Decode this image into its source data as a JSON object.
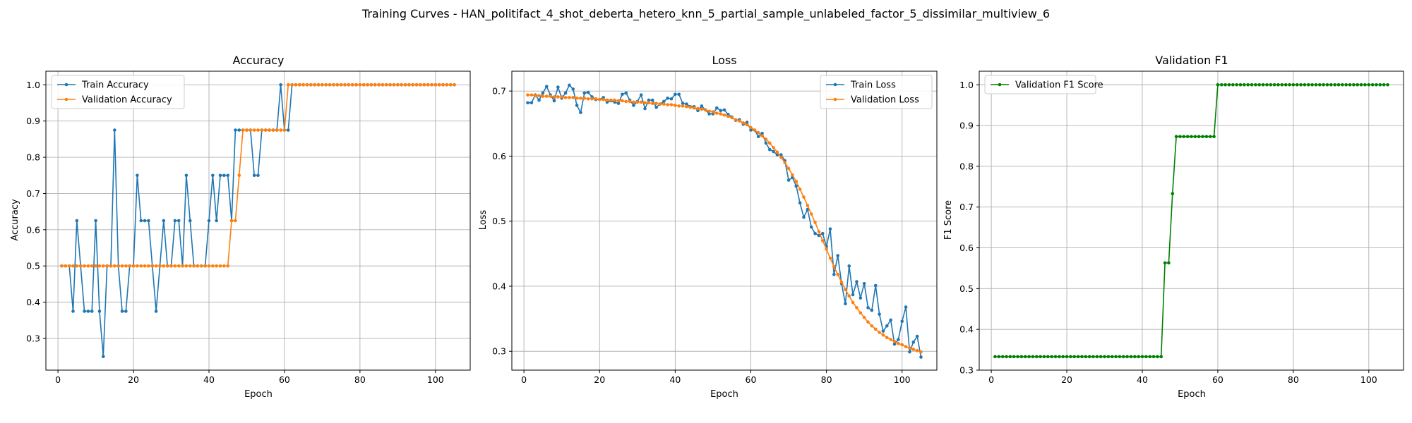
{
  "figure": {
    "suptitle": "Training Curves - HAN_politifact_4_shot_deberta_hetero_knn_5_partial_sample_unlabeled_factor_5_dissimilar_multiview_6"
  },
  "chart_data": [
    {
      "type": "line",
      "title": "Accuracy",
      "xlabel": "Epoch",
      "ylabel": "Accuracy",
      "xlim": [
        -3.2,
        109.2
      ],
      "ylim": [
        0.2125,
        1.0375
      ],
      "xticks": [
        0,
        20,
        40,
        60,
        80,
        100
      ],
      "yticks": [
        0.3,
        0.4,
        0.5,
        0.6,
        0.7,
        0.8,
        0.9,
        1.0
      ],
      "ytick_labels": [
        "0.3",
        "0.4",
        "0.5",
        "0.6",
        "0.7",
        "0.8",
        "0.9",
        "1.0"
      ],
      "grid": true,
      "legend_loc": "upper left",
      "x": "epochs",
      "series": [
        {
          "name": "Train Accuracy",
          "color": "#1f77b4",
          "values": [
            0.5,
            0.5,
            0.5,
            0.375,
            0.625,
            0.5,
            0.375,
            0.375,
            0.375,
            0.625,
            0.375,
            0.25,
            0.5,
            0.5,
            0.875,
            0.5,
            0.375,
            0.375,
            0.5,
            0.5,
            0.75,
            0.625,
            0.625,
            0.625,
            0.5,
            0.375,
            0.5,
            0.625,
            0.5,
            0.5,
            0.625,
            0.625,
            0.5,
            0.75,
            0.625,
            0.5,
            0.5,
            0.5,
            0.5,
            0.625,
            0.75,
            0.625,
            0.75,
            0.75,
            0.75,
            0.625,
            0.875,
            0.875,
            0.875,
            0.875,
            0.875,
            0.75,
            0.75,
            0.875,
            0.875,
            0.875,
            0.875,
            0.875,
            1.0,
            0.875,
            0.875,
            1.0,
            1.0,
            1.0,
            1.0,
            1.0,
            1.0,
            1.0,
            1.0,
            1.0,
            1.0,
            1.0,
            1.0,
            1.0,
            1.0,
            1.0,
            1.0,
            1.0,
            1.0,
            1.0,
            1.0,
            1.0,
            1.0,
            1.0,
            1.0,
            1.0,
            1.0,
            1.0,
            1.0,
            1.0,
            1.0,
            1.0,
            1.0,
            1.0,
            1.0,
            1.0,
            1.0,
            1.0,
            1.0,
            1.0,
            1.0,
            1.0,
            1.0,
            1.0,
            1.0
          ]
        },
        {
          "name": "Validation Accuracy",
          "color": "#ff7f0e",
          "values": [
            0.5,
            0.5,
            0.5,
            0.5,
            0.5,
            0.5,
            0.5,
            0.5,
            0.5,
            0.5,
            0.5,
            0.5,
            0.5,
            0.5,
            0.5,
            0.5,
            0.5,
            0.5,
            0.5,
            0.5,
            0.5,
            0.5,
            0.5,
            0.5,
            0.5,
            0.5,
            0.5,
            0.5,
            0.5,
            0.5,
            0.5,
            0.5,
            0.5,
            0.5,
            0.5,
            0.5,
            0.5,
            0.5,
            0.5,
            0.5,
            0.5,
            0.5,
            0.5,
            0.5,
            0.5,
            0.625,
            0.625,
            0.75,
            0.875,
            0.875,
            0.875,
            0.875,
            0.875,
            0.875,
            0.875,
            0.875,
            0.875,
            0.875,
            0.875,
            0.875,
            1.0,
            1.0,
            1.0,
            1.0,
            1.0,
            1.0,
            1.0,
            1.0,
            1.0,
            1.0,
            1.0,
            1.0,
            1.0,
            1.0,
            1.0,
            1.0,
            1.0,
            1.0,
            1.0,
            1.0,
            1.0,
            1.0,
            1.0,
            1.0,
            1.0,
            1.0,
            1.0,
            1.0,
            1.0,
            1.0,
            1.0,
            1.0,
            1.0,
            1.0,
            1.0,
            1.0,
            1.0,
            1.0,
            1.0,
            1.0,
            1.0,
            1.0,
            1.0,
            1.0,
            1.0
          ]
        }
      ]
    },
    {
      "type": "line",
      "title": "Loss",
      "xlabel": "Epoch",
      "ylabel": "Loss",
      "xlim": [
        -3.2,
        109.2
      ],
      "ylim": [
        0.271,
        0.7305
      ],
      "xticks": [
        0,
        20,
        40,
        60,
        80,
        100
      ],
      "yticks": [
        0.3,
        0.4,
        0.5,
        0.6,
        0.7
      ],
      "ytick_labels": [
        "0.3",
        "0.4",
        "0.5",
        "0.6",
        "0.7"
      ],
      "grid": true,
      "legend_loc": "upper right",
      "x": "epochs",
      "series": [
        {
          "name": "Train Loss",
          "color": "#1f77b4",
          "values": [
            0.682,
            0.682,
            0.694,
            0.686,
            0.697,
            0.707,
            0.694,
            0.685,
            0.706,
            0.689,
            0.697,
            0.709,
            0.703,
            0.678,
            0.667,
            0.697,
            0.698,
            0.691,
            0.687,
            0.687,
            0.69,
            0.683,
            0.685,
            0.683,
            0.681,
            0.695,
            0.697,
            0.686,
            0.678,
            0.684,
            0.694,
            0.673,
            0.686,
            0.686,
            0.675,
            0.68,
            0.684,
            0.689,
            0.688,
            0.695,
            0.695,
            0.681,
            0.68,
            0.676,
            0.676,
            0.67,
            0.677,
            0.671,
            0.665,
            0.665,
            0.674,
            0.67,
            0.671,
            0.664,
            0.66,
            0.655,
            0.656,
            0.649,
            0.652,
            0.64,
            0.64,
            0.63,
            0.635,
            0.62,
            0.61,
            0.607,
            0.602,
            0.602,
            0.593,
            0.563,
            0.567,
            0.554,
            0.528,
            0.506,
            0.518,
            0.491,
            0.481,
            0.478,
            0.481,
            0.461,
            0.488,
            0.418,
            0.447,
            0.404,
            0.373,
            0.431,
            0.387,
            0.407,
            0.382,
            0.404,
            0.367,
            0.363,
            0.401,
            0.357,
            0.331,
            0.339,
            0.348,
            0.311,
            0.318,
            0.346,
            0.368,
            0.299,
            0.314,
            0.323,
            0.291
          ]
        },
        {
          "name": "Validation Loss",
          "color": "#ff7f0e",
          "values": [
            0.694,
            0.694,
            0.693,
            0.693,
            0.692,
            0.692,
            0.692,
            0.691,
            0.691,
            0.691,
            0.69,
            0.69,
            0.69,
            0.689,
            0.689,
            0.689,
            0.688,
            0.688,
            0.688,
            0.687,
            0.687,
            0.686,
            0.686,
            0.686,
            0.685,
            0.685,
            0.684,
            0.684,
            0.683,
            0.683,
            0.683,
            0.682,
            0.682,
            0.681,
            0.681,
            0.68,
            0.68,
            0.679,
            0.679,
            0.678,
            0.677,
            0.677,
            0.676,
            0.675,
            0.674,
            0.673,
            0.672,
            0.671,
            0.669,
            0.668,
            0.666,
            0.665,
            0.663,
            0.661,
            0.659,
            0.656,
            0.654,
            0.651,
            0.648,
            0.644,
            0.64,
            0.636,
            0.631,
            0.626,
            0.62,
            0.613,
            0.606,
            0.598,
            0.59,
            0.581,
            0.571,
            0.561,
            0.549,
            0.537,
            0.524,
            0.511,
            0.498,
            0.484,
            0.47,
            0.457,
            0.443,
            0.43,
            0.418,
            0.406,
            0.395,
            0.385,
            0.375,
            0.367,
            0.359,
            0.352,
            0.345,
            0.339,
            0.334,
            0.329,
            0.325,
            0.321,
            0.318,
            0.315,
            0.312,
            0.31,
            0.307,
            0.305,
            0.303,
            0.301,
            0.299
          ]
        }
      ]
    },
    {
      "type": "line",
      "title": "Validation F1",
      "xlabel": "Epoch",
      "ylabel": "F1 Score",
      "xlim": [
        -3.2,
        109.2
      ],
      "ylim": [
        0.3,
        1.0333
      ],
      "xticks": [
        0,
        20,
        40,
        60,
        80,
        100
      ],
      "yticks": [
        0.3,
        0.4,
        0.5,
        0.6,
        0.7,
        0.8,
        0.9,
        1.0
      ],
      "ytick_labels": [
        "0.3",
        "0.4",
        "0.5",
        "0.6",
        "0.7",
        "0.8",
        "0.9",
        "1.0"
      ],
      "grid": true,
      "legend_loc": "upper left",
      "x": "epochs",
      "series": [
        {
          "name": "Validation F1 Score",
          "color": "#008000",
          "values": [
            0.333,
            0.333,
            0.333,
            0.333,
            0.333,
            0.333,
            0.333,
            0.333,
            0.333,
            0.333,
            0.333,
            0.333,
            0.333,
            0.333,
            0.333,
            0.333,
            0.333,
            0.333,
            0.333,
            0.333,
            0.333,
            0.333,
            0.333,
            0.333,
            0.333,
            0.333,
            0.333,
            0.333,
            0.333,
            0.333,
            0.333,
            0.333,
            0.333,
            0.333,
            0.333,
            0.333,
            0.333,
            0.333,
            0.333,
            0.333,
            0.333,
            0.333,
            0.333,
            0.333,
            0.333,
            0.563,
            0.563,
            0.733,
            0.873,
            0.873,
            0.873,
            0.873,
            0.873,
            0.873,
            0.873,
            0.873,
            0.873,
            0.873,
            0.873,
            1.0,
            1.0,
            1.0,
            1.0,
            1.0,
            1.0,
            1.0,
            1.0,
            1.0,
            1.0,
            1.0,
            1.0,
            1.0,
            1.0,
            1.0,
            1.0,
            1.0,
            1.0,
            1.0,
            1.0,
            1.0,
            1.0,
            1.0,
            1.0,
            1.0,
            1.0,
            1.0,
            1.0,
            1.0,
            1.0,
            1.0,
            1.0,
            1.0,
            1.0,
            1.0,
            1.0,
            1.0,
            1.0,
            1.0,
            1.0,
            1.0,
            1.0,
            1.0,
            1.0,
            1.0,
            1.0
          ]
        }
      ]
    }
  ]
}
